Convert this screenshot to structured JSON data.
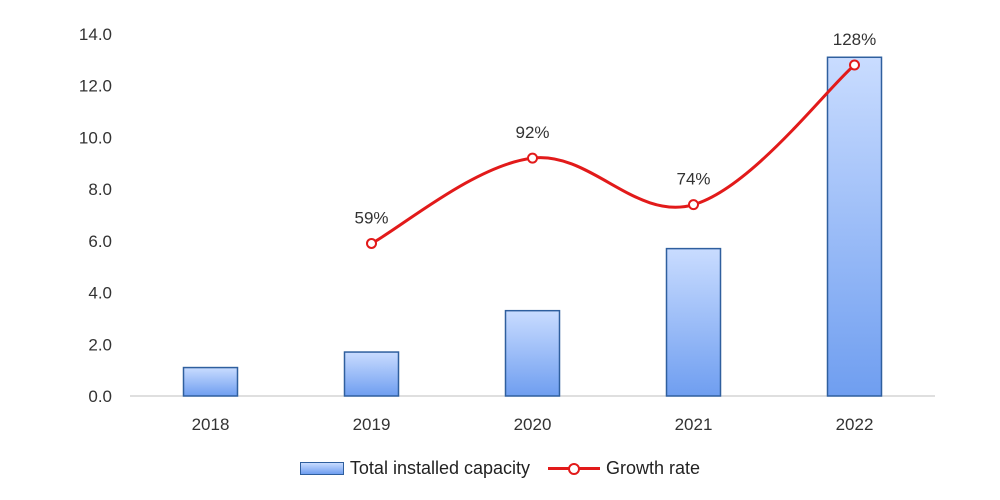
{
  "chart_data": {
    "type": "bar",
    "categories": [
      "2018",
      "2019",
      "2020",
      "2021",
      "2022"
    ],
    "series": [
      {
        "name": "Total installed capacity",
        "type": "bar",
        "values": [
          1.1,
          1.7,
          3.3,
          5.7,
          13.1
        ]
      },
      {
        "name": "Growth rate",
        "type": "line",
        "values": [
          null,
          59,
          92,
          74,
          128
        ],
        "labels": [
          "",
          "59%",
          "92%",
          "74%",
          "128%"
        ]
      }
    ],
    "yticks": [
      "0.0",
      "2.0",
      "4.0",
      "6.0",
      "8.0",
      "10.0",
      "12.0",
      "14.0"
    ],
    "ylim": [
      0,
      14
    ],
    "grid": false,
    "legend_position": "bottom",
    "colors": {
      "bar_top": "#c9dcff",
      "bar_bottom": "#6f9ef0",
      "bar_border": "#2f5f9e",
      "line": "#e21a1a"
    }
  }
}
